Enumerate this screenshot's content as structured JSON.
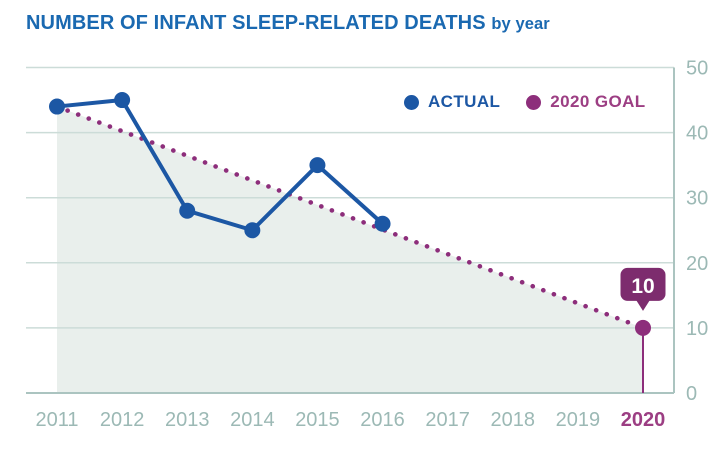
{
  "title": {
    "main": "NUMBER OF INFANT SLEEP-RELATED DEATHS",
    "suffix": "by year"
  },
  "colors": {
    "title": "#1a69b1",
    "actual": "#1c57a4",
    "goal": "#8d2e7b",
    "badge": "#7d2c6e",
    "badge_text": "#ffffff",
    "fill": "#e9efec",
    "grid": "#ccdcd8",
    "axis": "#abc4c0",
    "tick": "#9cb9b5",
    "tick_highlight": "#9c3e83"
  },
  "chart_data": {
    "type": "line",
    "title": "NUMBER OF INFANT SLEEP-RELATED DEATHS by year",
    "x": [
      2011,
      2012,
      2013,
      2014,
      2015,
      2016,
      2017,
      2018,
      2019,
      2020
    ],
    "series": [
      {
        "name": "ACTUAL",
        "x": [
          2011,
          2012,
          2013,
          2014,
          2015,
          2016
        ],
        "values": [
          44,
          45,
          28,
          25,
          35,
          26
        ],
        "color": "#1c57a4",
        "style": "solid-with-round-markers"
      },
      {
        "name": "2020 GOAL",
        "x": [
          2011,
          2020
        ],
        "values": [
          44,
          10
        ],
        "color": "#8d2e7b",
        "style": "dotted",
        "area_fill": "#e9efec",
        "end_marker": true
      }
    ],
    "ylim": [
      0,
      50
    ],
    "yticks": [
      0,
      10,
      20,
      30,
      40,
      50
    ],
    "grid": true,
    "legend_position": "top-right-inside",
    "highlight_tick": 2020,
    "annotation": {
      "label": "10",
      "year": 2020,
      "value": 10,
      "shape": "speech-bubble-badge"
    }
  }
}
